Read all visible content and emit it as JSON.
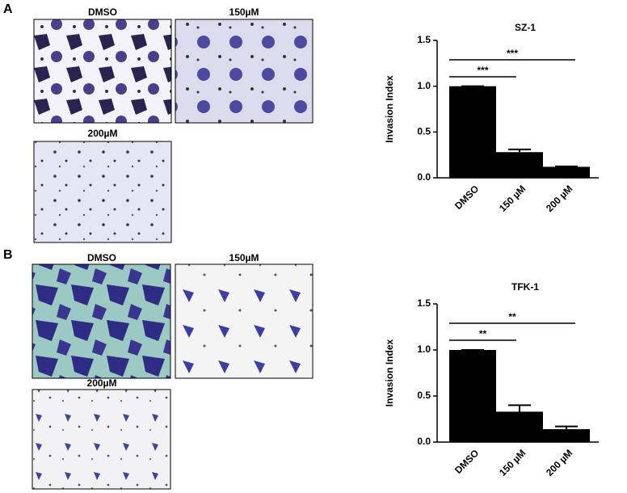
{
  "panels": [
    {
      "label": "A",
      "images": [
        "DMSO",
        "150µM",
        "200µM"
      ]
    },
    {
      "label": "B",
      "images": [
        "DMSO",
        "150µM",
        "200µM"
      ]
    }
  ],
  "chart_data": [
    {
      "type": "bar",
      "title": "SZ-1",
      "y_label": "Invasion Index",
      "categories": [
        "DMSO",
        "150 µM",
        "200 µM"
      ],
      "values": [
        1.0,
        0.28,
        0.12
      ],
      "errors": [
        0,
        0.03,
        0.005
      ],
      "color": "#000000",
      "ylim": [
        0,
        1.5
      ],
      "yticks": [
        {
          "value": 0,
          "label": "0.0"
        },
        {
          "value": 0.5,
          "label": "0.5"
        },
        {
          "value": 1,
          "label": "1.0"
        },
        {
          "value": 1.5,
          "label": "1.5"
        }
      ],
      "significance": [
        "***",
        "***"
      ]
    },
    {
      "type": "bar",
      "title": "TFK-1",
      "y_label": "Invasion Index",
      "categories": [
        "DMSO",
        "150 µM",
        "200 µM"
      ],
      "values": [
        1.0,
        0.33,
        0.14
      ],
      "errors": [
        0,
        0.07,
        0.03
      ],
      "color": "#000000",
      "ylim": [
        0,
        1.5
      ],
      "yticks": [
        {
          "value": 0,
          "label": "0.0"
        },
        {
          "value": 0.5,
          "label": "0.5"
        },
        {
          "value": 1,
          "label": "1.0"
        },
        {
          "value": 1.5,
          "label": "1.5"
        }
      ],
      "significance": [
        "**",
        "**"
      ]
    }
  ]
}
